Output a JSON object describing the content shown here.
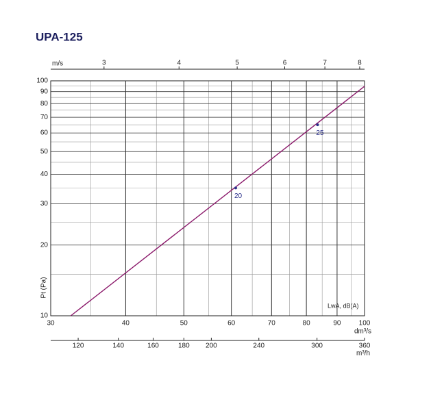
{
  "chart_data": {
    "type": "line",
    "title": "UPA-125",
    "y_label": "Pt (Pa)",
    "x_label": "dm³/s",
    "x2_label": "m/s",
    "x3_label": "m³/h",
    "annotation": "LwA, dB(A)",
    "x": [
      32.4,
      100
    ],
    "series": [
      {
        "color": "#8b1a6b",
        "values": [
          10,
          94.8
        ]
      }
    ],
    "points": {
      "x": [
        61,
        83.5
      ],
      "values": [
        35,
        65
      ],
      "labels": [
        20,
        25
      ],
      "color": "#2a2f8a"
    },
    "xlim": [
      30,
      100
    ],
    "xticks": [
      30,
      40,
      50,
      60,
      70,
      80,
      90,
      100
    ],
    "log_x": true,
    "ylim": [
      10,
      100
    ],
    "yticks": [
      10,
      20,
      30,
      40,
      50,
      60,
      70,
      80,
      90,
      100
    ],
    "log_y": true,
    "x2lim": [
      2.445,
      8.15
    ],
    "x2ticks": [
      3,
      4,
      5,
      6,
      7,
      8
    ],
    "x3lim": [
      108,
      360
    ],
    "x3ticks": [
      120,
      140,
      160,
      180,
      200,
      240,
      300,
      360
    ],
    "grid": true
  }
}
